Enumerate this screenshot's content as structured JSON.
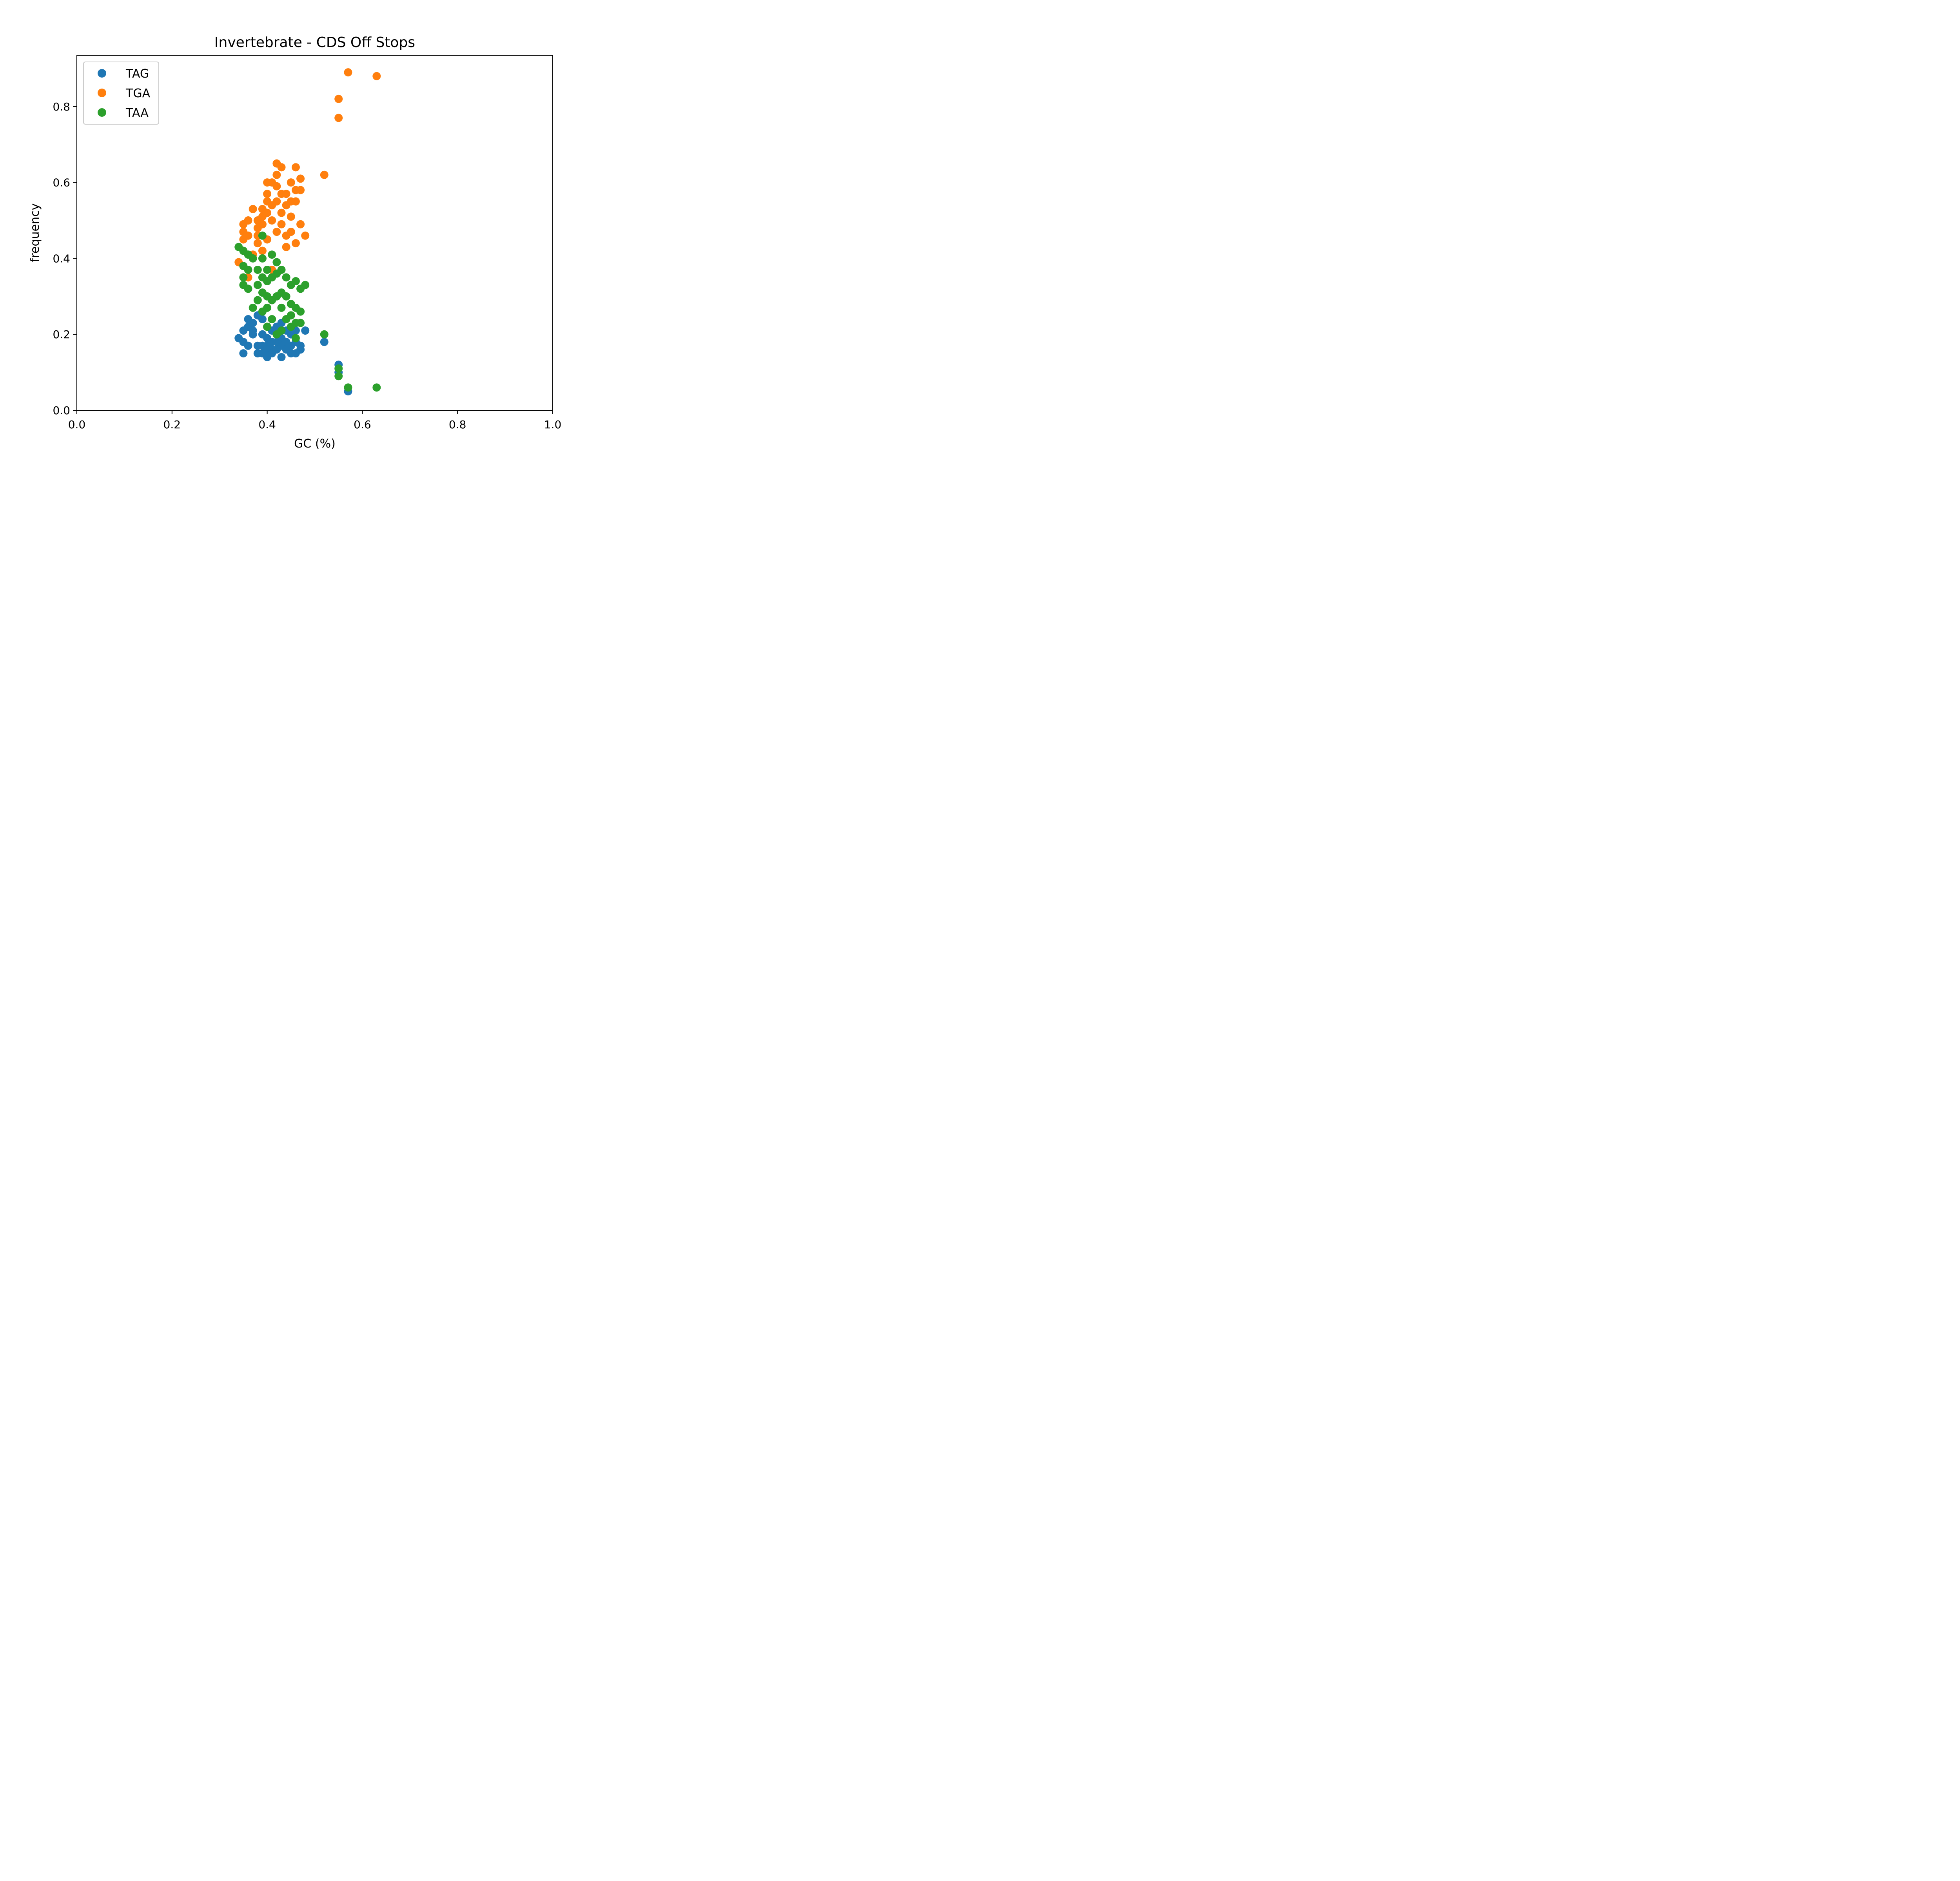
{
  "chart_data": {
    "type": "scatter",
    "title": "Invertebrate - CDS Off Stops",
    "xlabel": "GC (%)",
    "ylabel": "frequency",
    "xlim": [
      0.0,
      1.0
    ],
    "ylim": [
      0.0,
      0.935
    ],
    "xticks": [
      0.0,
      0.2,
      0.4,
      0.6,
      0.8,
      1.0
    ],
    "xtick_labels": [
      "0.0",
      "0.2",
      "0.4",
      "0.6",
      "0.8",
      "1.0"
    ],
    "yticks": [
      0.0,
      0.2,
      0.4,
      0.6,
      0.8
    ],
    "ytick_labels": [
      "0.0",
      "0.2",
      "0.4",
      "0.6",
      "0.8"
    ],
    "grid": false,
    "legend_position": "top-left",
    "series": [
      {
        "name": "TAG",
        "color": "#1f77b4",
        "x": [
          0.34,
          0.35,
          0.35,
          0.35,
          0.36,
          0.36,
          0.36,
          0.37,
          0.37,
          0.37,
          0.38,
          0.38,
          0.38,
          0.39,
          0.39,
          0.39,
          0.39,
          0.4,
          0.4,
          0.4,
          0.4,
          0.4,
          0.41,
          0.41,
          0.41,
          0.41,
          0.42,
          0.42,
          0.42,
          0.42,
          0.43,
          0.43,
          0.43,
          0.43,
          0.44,
          0.44,
          0.44,
          0.45,
          0.45,
          0.45,
          0.46,
          0.46,
          0.46,
          0.47,
          0.47,
          0.48,
          0.52,
          0.55,
          0.55,
          0.57
        ],
        "y": [
          0.19,
          0.21,
          0.18,
          0.15,
          0.24,
          0.22,
          0.17,
          0.23,
          0.2,
          0.21,
          0.25,
          0.17,
          0.15,
          0.24,
          0.2,
          0.17,
          0.15,
          0.22,
          0.19,
          0.17,
          0.16,
          0.14,
          0.21,
          0.18,
          0.16,
          0.15,
          0.22,
          0.2,
          0.18,
          0.16,
          0.23,
          0.19,
          0.17,
          0.14,
          0.21,
          0.18,
          0.16,
          0.2,
          0.17,
          0.15,
          0.21,
          0.18,
          0.15,
          0.17,
          0.16,
          0.21,
          0.18,
          0.12,
          0.1,
          0.05
        ]
      },
      {
        "name": "TGA",
        "color": "#ff7f0e",
        "x": [
          0.34,
          0.35,
          0.35,
          0.35,
          0.36,
          0.36,
          0.36,
          0.37,
          0.37,
          0.38,
          0.38,
          0.38,
          0.38,
          0.39,
          0.39,
          0.39,
          0.39,
          0.4,
          0.4,
          0.4,
          0.4,
          0.4,
          0.41,
          0.41,
          0.41,
          0.41,
          0.42,
          0.42,
          0.42,
          0.42,
          0.42,
          0.43,
          0.43,
          0.43,
          0.43,
          0.44,
          0.44,
          0.44,
          0.44,
          0.45,
          0.45,
          0.45,
          0.45,
          0.46,
          0.46,
          0.46,
          0.46,
          0.47,
          0.47,
          0.47,
          0.48,
          0.52,
          0.55,
          0.55,
          0.57,
          0.63
        ],
        "y": [
          0.39,
          0.49,
          0.47,
          0.45,
          0.5,
          0.46,
          0.35,
          0.53,
          0.41,
          0.5,
          0.48,
          0.46,
          0.44,
          0.53,
          0.51,
          0.49,
          0.42,
          0.6,
          0.57,
          0.55,
          0.52,
          0.45,
          0.6,
          0.54,
          0.5,
          0.37,
          0.65,
          0.62,
          0.59,
          0.55,
          0.47,
          0.64,
          0.57,
          0.52,
          0.49,
          0.57,
          0.54,
          0.46,
          0.43,
          0.6,
          0.55,
          0.51,
          0.47,
          0.64,
          0.58,
          0.55,
          0.44,
          0.61,
          0.58,
          0.49,
          0.46,
          0.62,
          0.82,
          0.77,
          0.89,
          0.88
        ]
      },
      {
        "name": "TAA",
        "color": "#2ca02c",
        "x": [
          0.34,
          0.35,
          0.35,
          0.35,
          0.35,
          0.36,
          0.36,
          0.36,
          0.37,
          0.37,
          0.38,
          0.38,
          0.38,
          0.39,
          0.39,
          0.39,
          0.39,
          0.39,
          0.4,
          0.4,
          0.4,
          0.4,
          0.4,
          0.41,
          0.41,
          0.41,
          0.41,
          0.42,
          0.42,
          0.42,
          0.42,
          0.43,
          0.43,
          0.43,
          0.43,
          0.44,
          0.44,
          0.44,
          0.45,
          0.45,
          0.45,
          0.45,
          0.46,
          0.46,
          0.46,
          0.46,
          0.47,
          0.47,
          0.47,
          0.48,
          0.52,
          0.55,
          0.55,
          0.57,
          0.63
        ],
        "y": [
          0.43,
          0.42,
          0.38,
          0.35,
          0.33,
          0.41,
          0.37,
          0.32,
          0.4,
          0.27,
          0.37,
          0.33,
          0.29,
          0.46,
          0.4,
          0.35,
          0.31,
          0.26,
          0.37,
          0.34,
          0.3,
          0.27,
          0.22,
          0.41,
          0.35,
          0.29,
          0.24,
          0.39,
          0.36,
          0.3,
          0.2,
          0.37,
          0.31,
          0.27,
          0.21,
          0.35,
          0.3,
          0.24,
          0.33,
          0.28,
          0.25,
          0.22,
          0.34,
          0.27,
          0.23,
          0.19,
          0.32,
          0.26,
          0.23,
          0.33,
          0.2,
          0.11,
          0.09,
          0.06,
          0.06
        ]
      }
    ]
  }
}
